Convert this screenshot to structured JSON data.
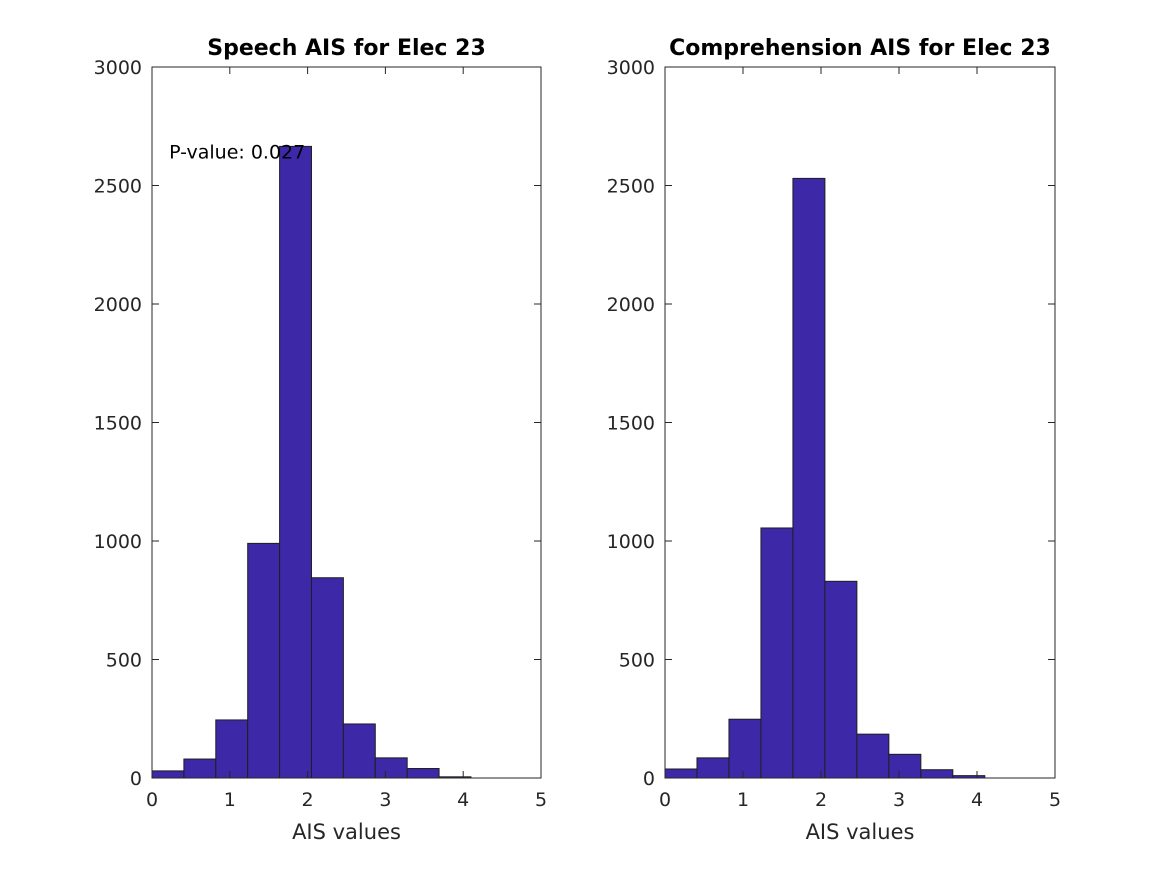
{
  "colors": {
    "bar_fill": "#3d28a8",
    "axis": "#262626",
    "background": "#ffffff"
  },
  "chart_data": [
    {
      "type": "bar",
      "title": "Speech AIS for Elec 23",
      "xlabel": "AIS values",
      "ylabel": "",
      "xlim": [
        0,
        5
      ],
      "ylim": [
        0,
        3000
      ],
      "xticks": [
        0,
        1,
        2,
        3,
        4,
        5
      ],
      "yticks": [
        0,
        500,
        1000,
        1500,
        2000,
        2500,
        3000
      ],
      "bin_edges": [
        0,
        0.41,
        0.82,
        1.23,
        1.64,
        2.05,
        2.46,
        2.87,
        3.28,
        3.69,
        4.1
      ],
      "values": [
        30,
        80,
        245,
        990,
        2665,
        845,
        228,
        85,
        40,
        5
      ],
      "annotation": {
        "text": "P-value: 0.027",
        "x": 0.22,
        "y": 2640
      },
      "grid": false,
      "box": true
    },
    {
      "type": "bar",
      "title": "Comprehension AIS for Elec 23",
      "xlabel": "AIS values",
      "ylabel": "",
      "xlim": [
        0,
        5
      ],
      "ylim": [
        0,
        3000
      ],
      "xticks": [
        0,
        1,
        2,
        3,
        4,
        5
      ],
      "yticks": [
        0,
        500,
        1000,
        1500,
        2000,
        2500,
        3000
      ],
      "bin_edges": [
        0,
        0.41,
        0.82,
        1.23,
        1.64,
        2.05,
        2.46,
        2.87,
        3.28,
        3.69,
        4.1
      ],
      "values": [
        38,
        85,
        248,
        1055,
        2530,
        830,
        185,
        100,
        35,
        10
      ],
      "grid": false,
      "box": true
    }
  ]
}
